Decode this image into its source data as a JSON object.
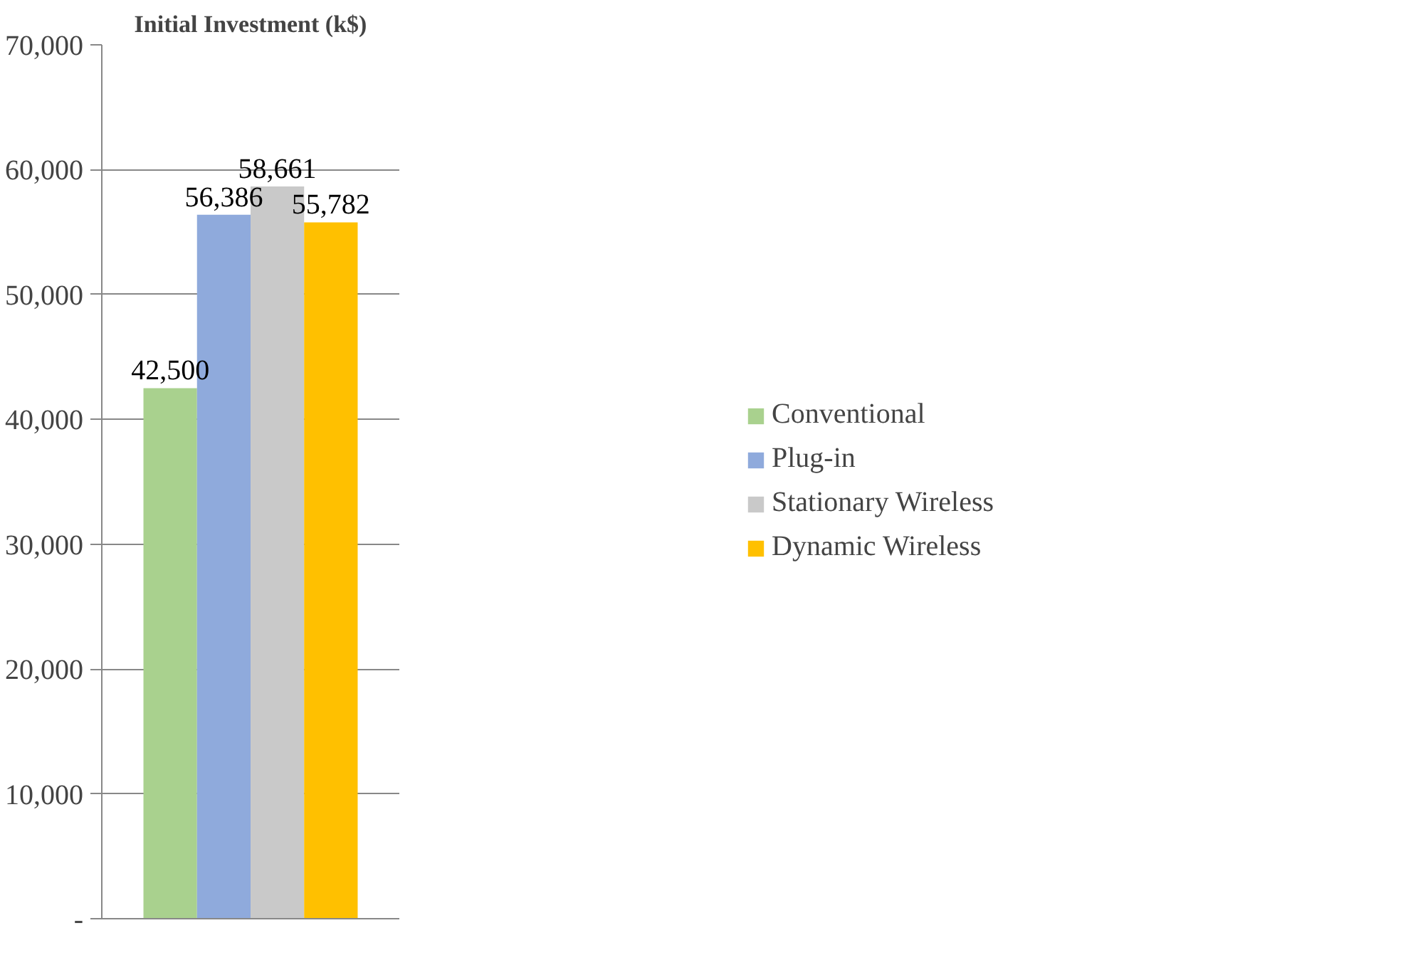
{
  "chart_data": {
    "type": "bar",
    "title": "Initial Investment (k$)",
    "categories": [
      null
    ],
    "series": [
      {
        "name": "Conventional",
        "color": "#a9d18e",
        "values": [
          42500
        ],
        "value_labels": [
          "42,500"
        ]
      },
      {
        "name": "Plug-in",
        "color": "#8faadc",
        "values": [
          56386
        ],
        "value_labels": [
          "56,386"
        ]
      },
      {
        "name": "Stationary Wireless",
        "color": "#c9c9c9",
        "values": [
          58661
        ],
        "value_labels": [
          "58,661"
        ]
      },
      {
        "name": "Dynamic Wireless",
        "color": "#ffc000",
        "values": [
          55782
        ],
        "value_labels": [
          "55,782"
        ]
      }
    ],
    "ylim": [
      0,
      70000
    ],
    "yticks": [
      {
        "value": 0,
        "label": "-"
      },
      {
        "value": 10000,
        "label": "10,000"
      },
      {
        "value": 20000,
        "label": "20,000"
      },
      {
        "value": 30000,
        "label": "30,000"
      },
      {
        "value": 40000,
        "label": "40,000"
      },
      {
        "value": 50000,
        "label": "50,000"
      },
      {
        "value": 60000,
        "label": "60,000"
      },
      {
        "value": 70000,
        "label": "70,000"
      }
    ],
    "grid": "y",
    "legend": "right"
  }
}
